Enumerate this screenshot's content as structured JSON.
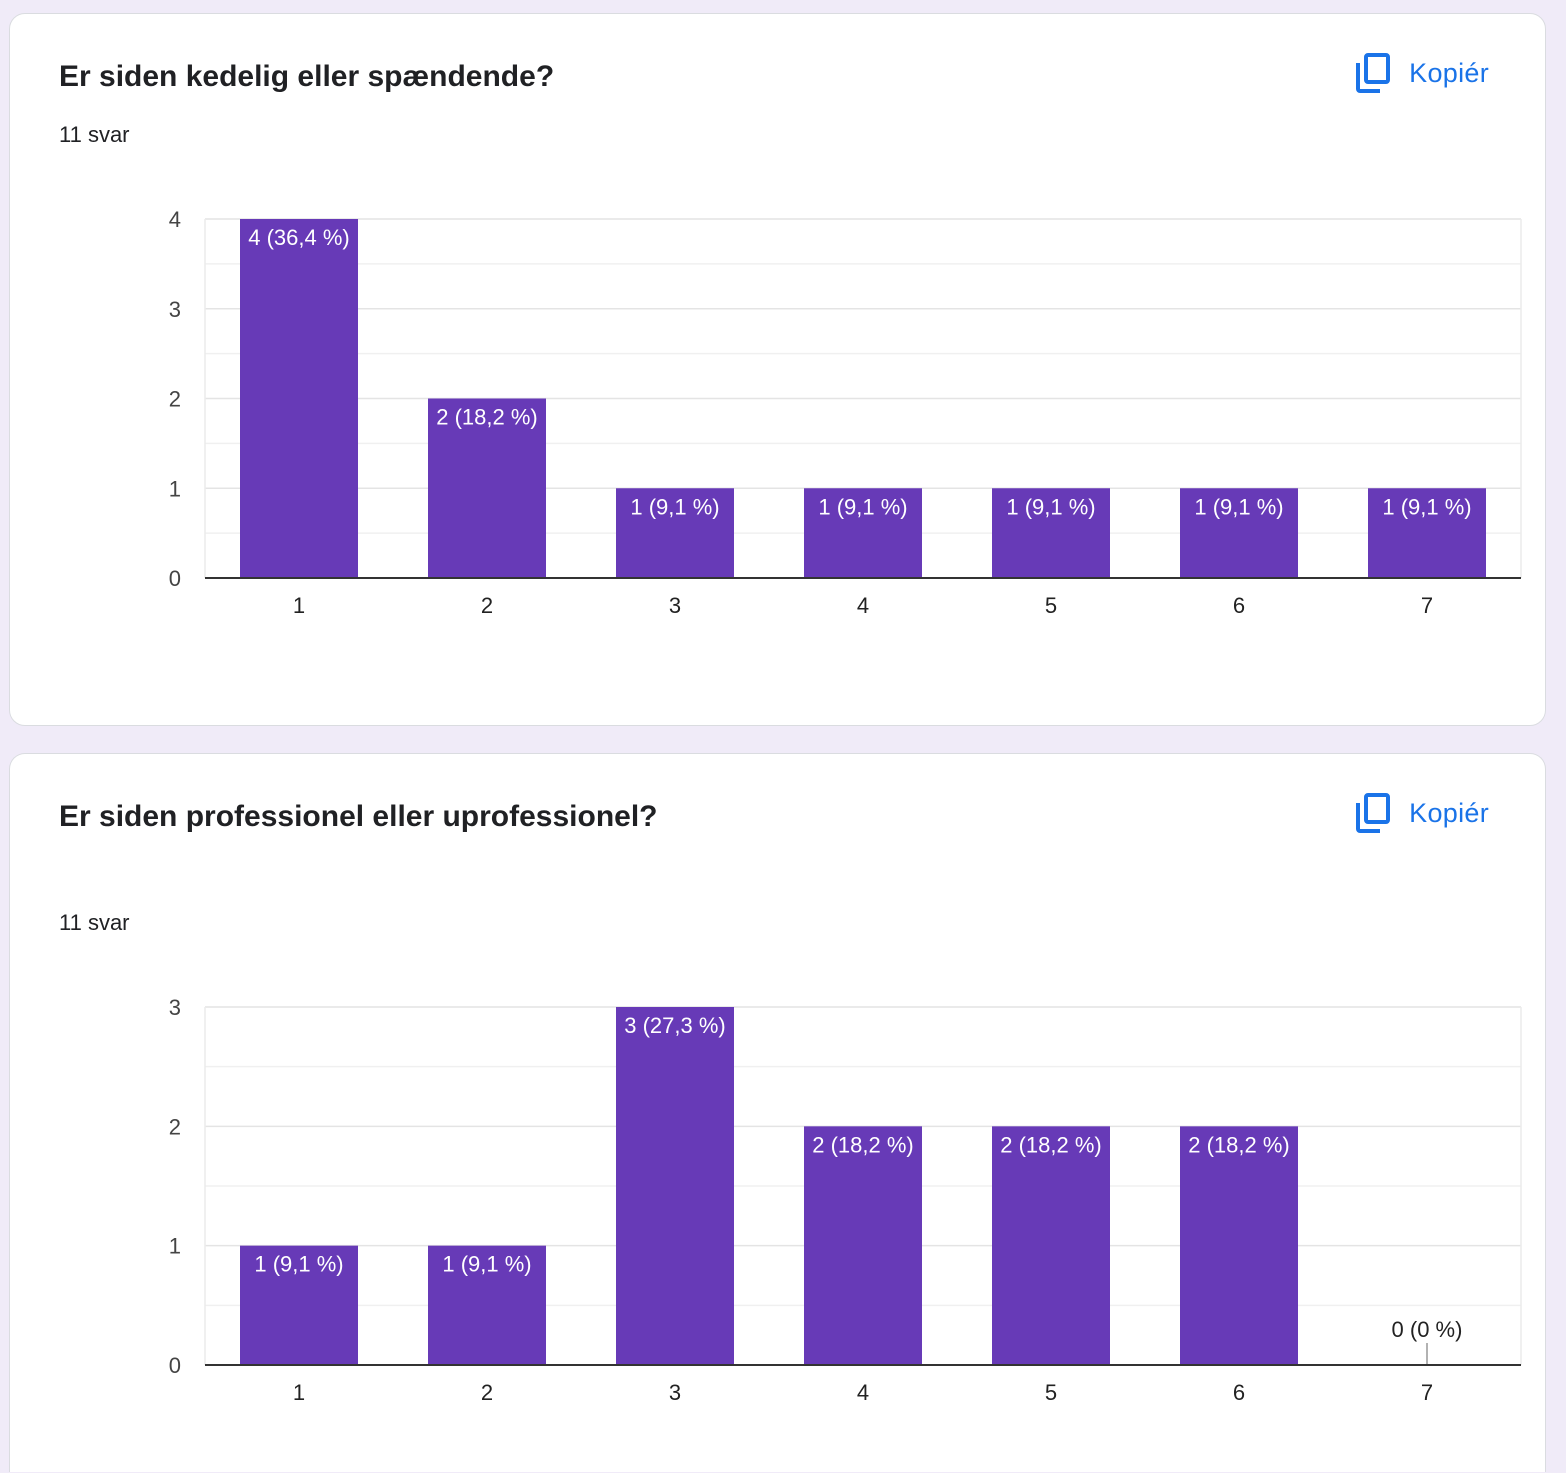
{
  "copy_label": "Kopiér",
  "colors": {
    "bar": "#673ab7",
    "accent": "#1a73e8",
    "axis": "#333333",
    "grid": "#e6e6e6"
  },
  "cards": [
    {
      "question": "Er siden kedelig eller spændende?",
      "response_count": "11 svar",
      "chart_data": {
        "type": "bar",
        "categories": [
          "1",
          "2",
          "3",
          "4",
          "5",
          "6",
          "7"
        ],
        "values": [
          4,
          2,
          1,
          1,
          1,
          1,
          1
        ],
        "data_labels": [
          "4 (36,4 %)",
          "2 (18,2 %)",
          "1 (9,1 %)",
          "1 (9,1 %)",
          "1 (9,1 %)",
          "1 (9,1 %)",
          "1 (9,1 %)"
        ],
        "yticks": [
          0,
          1,
          2,
          3,
          4
        ],
        "ylim": [
          0,
          4
        ],
        "grid": true
      }
    },
    {
      "question": "Er siden professionel eller uprofessionel?",
      "response_count": "11 svar",
      "chart_data": {
        "type": "bar",
        "categories": [
          "1",
          "2",
          "3",
          "4",
          "5",
          "6",
          "7"
        ],
        "values": [
          1,
          1,
          3,
          2,
          2,
          2,
          0
        ],
        "data_labels": [
          "1 (9,1 %)",
          "1 (9,1 %)",
          "3 (27,3 %)",
          "2 (18,2 %)",
          "2 (18,2 %)",
          "2 (18,2 %)",
          "0 (0 %)"
        ],
        "yticks": [
          0,
          1,
          2,
          3
        ],
        "ylim": [
          0,
          3
        ],
        "grid": true
      }
    }
  ]
}
